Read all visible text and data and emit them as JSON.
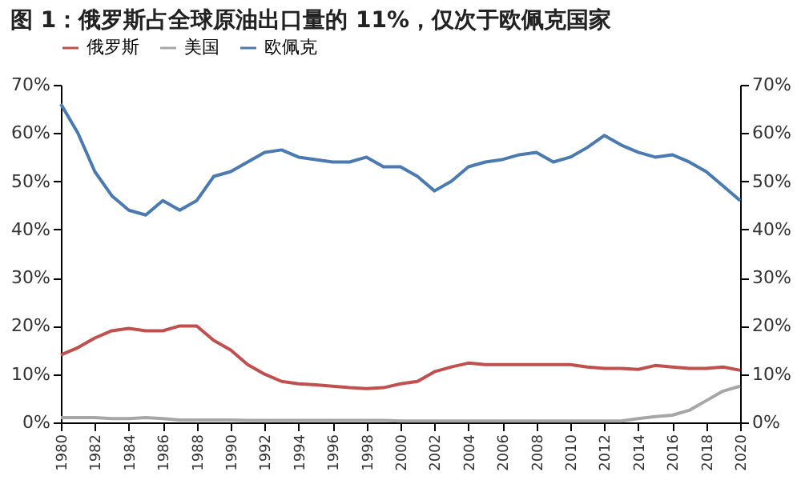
{
  "chart_data": {
    "type": "line",
    "title": "图 1：俄罗斯占全球原油出口量的 11%，仅次于欧佩克国家",
    "x": [
      1980,
      1981,
      1982,
      1983,
      1984,
      1985,
      1986,
      1987,
      1988,
      1989,
      1990,
      1991,
      1992,
      1993,
      1994,
      1995,
      1996,
      1997,
      1998,
      1999,
      2000,
      2001,
      2002,
      2003,
      2004,
      2005,
      2006,
      2007,
      2008,
      2009,
      2010,
      2011,
      2012,
      2013,
      2014,
      2015,
      2016,
      2017,
      2018,
      2019,
      2020
    ],
    "series": [
      {
        "name": "俄罗斯",
        "color": "#c0504d",
        "values": [
          14,
          15.5,
          17.5,
          19,
          19.5,
          19,
          19,
          20,
          20,
          17,
          15,
          12,
          10,
          8.5,
          8,
          7.8,
          7.5,
          7.2,
          7,
          7.2,
          8,
          8.5,
          10.5,
          11.5,
          12.3,
          12,
          12,
          12,
          12,
          12,
          12,
          11.5,
          11.2,
          11.2,
          11,
          11.8,
          11.5,
          11.2,
          11.2,
          11.5,
          10.8
        ]
      },
      {
        "name": "美国",
        "color": "#a6a6a6",
        "values": [
          1,
          1,
          1,
          0.8,
          0.8,
          1,
          0.8,
          0.5,
          0.5,
          0.5,
          0.5,
          0.4,
          0.4,
          0.4,
          0.4,
          0.4,
          0.4,
          0.4,
          0.4,
          0.4,
          0.3,
          0.3,
          0.3,
          0.3,
          0.3,
          0.3,
          0.3,
          0.3,
          0.3,
          0.3,
          0.3,
          0.3,
          0.3,
          0.3,
          0.8,
          1.2,
          1.5,
          2.5,
          4.5,
          6.5,
          7.5
        ]
      },
      {
        "name": "欧佩克",
        "color": "#4a7ab0",
        "values": [
          66,
          60,
          52,
          47,
          44,
          43,
          46,
          44,
          46,
          51,
          52,
          54,
          56,
          56.5,
          55,
          54.5,
          54,
          54,
          55,
          53,
          53,
          51,
          48,
          50,
          53,
          54,
          54.5,
          55.5,
          56,
          54,
          55,
          57,
          59.5,
          57.5,
          56,
          55,
          55.5,
          54,
          52,
          49,
          46
        ]
      }
    ],
    "xlim": [
      1980,
      2020
    ],
    "xticks": [
      1980,
      1982,
      1984,
      1986,
      1988,
      1990,
      1992,
      1994,
      1996,
      1998,
      2000,
      2002,
      2004,
      2006,
      2008,
      2010,
      2012,
      2014,
      2016,
      2018,
      2020
    ],
    "ylim": [
      0,
      70
    ],
    "yticks": [
      {
        "value": 0,
        "label": "0%"
      },
      {
        "value": 10,
        "label": "10%"
      },
      {
        "value": 20,
        "label": "20%"
      },
      {
        "value": 30,
        "label": "30%"
      },
      {
        "value": 40,
        "label": "40%"
      },
      {
        "value": 50,
        "label": "50%"
      },
      {
        "value": 60,
        "label": "60%"
      },
      {
        "value": 70,
        "label": "70%"
      }
    ],
    "y2lim": [
      0,
      70
    ],
    "y2ticks": [
      {
        "value": 0,
        "label": "0%"
      },
      {
        "value": 10,
        "label": "10%"
      },
      {
        "value": 20,
        "label": "20%"
      },
      {
        "value": 30,
        "label": "30%"
      },
      {
        "value": 40,
        "label": "40%"
      },
      {
        "value": 50,
        "label": "50%"
      },
      {
        "value": 60,
        "label": "60%"
      },
      {
        "value": 70,
        "label": "70%"
      }
    ],
    "grid": false,
    "legend": "top",
    "marker": "none",
    "line_style": "solid"
  }
}
